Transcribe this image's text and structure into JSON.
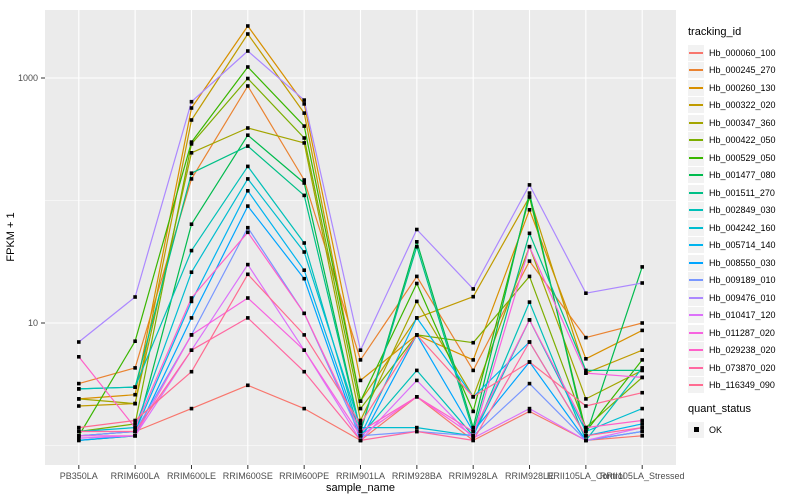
{
  "chart_data": {
    "type": "line",
    "title": "",
    "xlabel": "sample_name",
    "ylabel": "FPKM + 1",
    "y_scale": "log10",
    "y_major_ticks": [
      10,
      1000
    ],
    "y_tick_labels": [
      "10",
      "1000"
    ],
    "y_minor_gridlines": [
      1,
      100
    ],
    "grid": "on",
    "legend": {
      "color_title": "tracking_id",
      "shape_title": "quant_status",
      "shape_items": [
        {
          "label": "OK",
          "shape": "square",
          "color": "#000000"
        }
      ]
    },
    "categories": [
      "PB350LA",
      "RRIM600LA",
      "RRIM600LE",
      "RRIM600SE",
      "RRIM600PE",
      "RRIM901LA",
      "RRIM928BA",
      "RRIM928LA",
      "RRIM928LE",
      "RRII105LA_Control",
      "RRII105LA_Stressed"
    ],
    "series": [
      {
        "name": "Hb_000060_100",
        "color": "#F8766D",
        "values": [
          1.2,
          1.3,
          2.0,
          3.1,
          2.0,
          1.1,
          2.5,
          1.1,
          1.9,
          1.1,
          1.2
        ]
      },
      {
        "name": "Hb_000245_270",
        "color": "#EA8331",
        "values": [
          3.2,
          4.3,
          150,
          861,
          147,
          5.0,
          24,
          4.1,
          32,
          7.6,
          10.0
        ]
      },
      {
        "name": "Hb_000260_130",
        "color": "#D89000",
        "values": [
          2.4,
          2.6,
          569,
          2656,
          615,
          3.4,
          8.0,
          5.0,
          84,
          5.1,
          8.7
        ]
      },
      {
        "name": "Hb_000322_020",
        "color": "#C09B00",
        "values": [
          2.1,
          2.2,
          454,
          2287,
          517,
          2.3,
          11,
          16.4,
          107,
          3.9,
          6.0
        ]
      },
      {
        "name": "Hb_000347_360",
        "color": "#A3A500",
        "values": [
          2.4,
          2.2,
          245,
          391,
          295,
          1.6,
          15,
          2.5,
          42,
          2.4,
          4.1
        ]
      },
      {
        "name": "Hb_000422_050",
        "color": "#7CAE00",
        "values": [
          1.3,
          1.5,
          290,
          990,
          324,
          2.0,
          8.0,
          6.9,
          24,
          1.4,
          3.6
        ]
      },
      {
        "name": "Hb_000529_050",
        "color": "#39B600",
        "values": [
          1.2,
          7.1,
          300,
          1230,
          405,
          2.3,
          21,
          1.9,
          107,
          1.3,
          5.0
        ]
      },
      {
        "name": "Hb_001477_080",
        "color": "#00BB4E",
        "values": [
          1.1,
          1.2,
          64,
          341,
          139,
          1.3,
          46,
          1.4,
          115,
          1.2,
          28.7
        ]
      },
      {
        "name": "Hb_001511_270",
        "color": "#00C087",
        "values": [
          2.9,
          3.0,
          167,
          278,
          110,
          1.3,
          42,
          1.3,
          54,
          4.1,
          4.1
        ]
      },
      {
        "name": "Hb_002849_030",
        "color": "#00C0B8",
        "values": [
          2.9,
          3.0,
          39,
          190,
          45,
          1.2,
          4.1,
          1.2,
          14.8,
          1.1,
          4.3
        ]
      },
      {
        "name": "Hb_004242_160",
        "color": "#00BDD0",
        "values": [
          1.3,
          1.4,
          26,
          150,
          38,
          1.4,
          1.4,
          1.2,
          10.6,
          1.3,
          2.0
        ]
      },
      {
        "name": "Hb_005714_140",
        "color": "#00B4EF",
        "values": [
          1.2,
          1.3,
          15,
          120,
          27,
          1.2,
          11,
          2.5,
          7.0,
          1.2,
          1.5
        ]
      },
      {
        "name": "Hb_008550_030",
        "color": "#00A5FF",
        "values": [
          1.1,
          1.2,
          11,
          90,
          23,
          1.1,
          8.0,
          1.3,
          4.8,
          1.1,
          1.3
        ]
      },
      {
        "name": "Hb_009189_010",
        "color": "#7997FF",
        "values": [
          1.2,
          1.3,
          8.0,
          60,
          12,
          1.2,
          1.3,
          1.2,
          3.2,
          1.1,
          1.3
        ]
      },
      {
        "name": "Hb_009476_010",
        "color": "#AC88FF",
        "values": [
          7.0,
          16.3,
          640,
          1660,
          660,
          6.0,
          58,
          19,
          134,
          17.5,
          21.2
        ]
      },
      {
        "name": "Hb_010417_120",
        "color": "#DC71FA",
        "values": [
          1.15,
          1.2,
          6.0,
          30,
          6.0,
          1.1,
          3.4,
          1.15,
          2.0,
          1.1,
          1.4
        ]
      },
      {
        "name": "Hb_011287_020",
        "color": "#F763E0",
        "values": [
          1.2,
          1.2,
          8.0,
          16,
          6.0,
          1.2,
          2.5,
          1.2,
          42,
          3.9,
          3.6
        ]
      },
      {
        "name": "Hb_029238_020",
        "color": "#FF61C9",
        "values": [
          5.3,
          1.4,
          16,
          55,
          12,
          1.3,
          2.5,
          1.3,
          10.6,
          1.4,
          1.6
        ]
      },
      {
        "name": "Hb_073870_020",
        "color": "#FF68A1",
        "values": [
          1.3,
          1.3,
          6.0,
          11,
          4.0,
          1.1,
          1.3,
          1.1,
          7.0,
          1.2,
          1.4
        ]
      },
      {
        "name": "Hb_116349_090",
        "color": "#FF6C91",
        "values": [
          1.4,
          1.6,
          4.0,
          25,
          8.0,
          1.5,
          8.0,
          2.5,
          4.8,
          2.1,
          2.7
        ]
      }
    ]
  },
  "theme": {
    "panel_bg": "#EBEBEB",
    "grid_color": "#FFFFFF",
    "key_bg": "#F2F2F2",
    "tick_text_color": "#4D4D4D",
    "axis_title_color": "#000000",
    "point_color": "#000000"
  }
}
